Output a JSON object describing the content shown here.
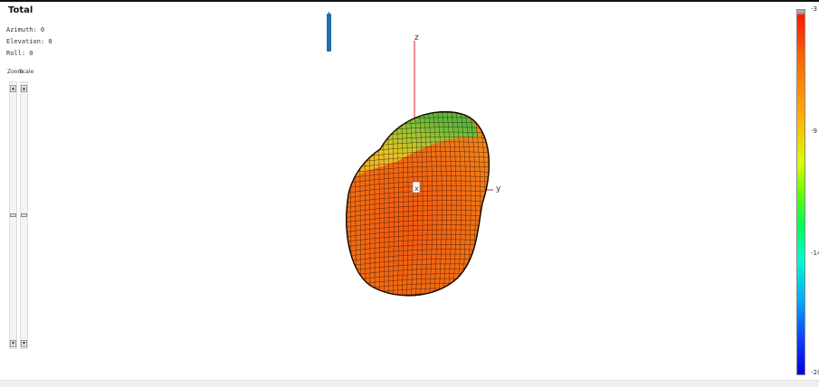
{
  "panel": {
    "title": "Total",
    "azimuth": "Azimuth: 0",
    "elevation": "Elevation: 0",
    "roll": "Roll: 0"
  },
  "sliders": {
    "zoom_label": "Zoom",
    "scale_label": "Scale",
    "up_glyph": "▲",
    "down_glyph": "▼"
  },
  "axes": {
    "z": "z",
    "y": "y",
    "x": "x"
  },
  "colorbar": {
    "ticks": [
      "-3",
      "-9",
      "-14",
      "-20"
    ],
    "colors": [
      "#ff1800",
      "#ff8000",
      "#c8ff00",
      "#00ff66",
      "#00c8ff",
      "#0000e6"
    ]
  },
  "surface": {
    "colors": {
      "body": "#f26a12",
      "top": "#f5a424",
      "green": "#7fc23a",
      "yellow": "#e6cf2a",
      "mesh": "#2a1200"
    }
  }
}
